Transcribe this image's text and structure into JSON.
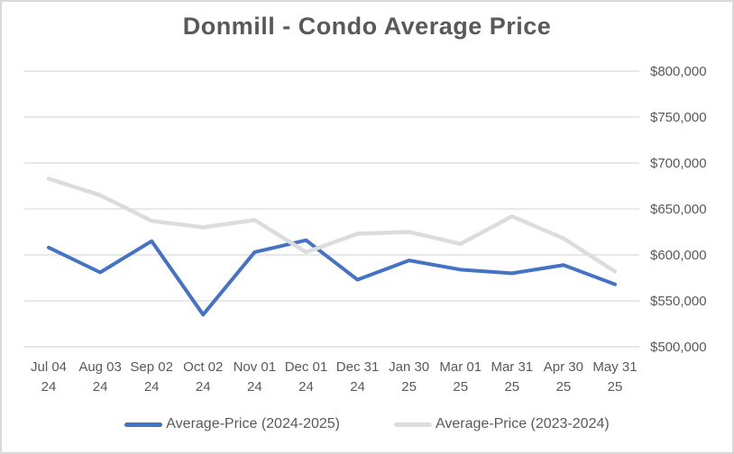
{
  "chart_data": {
    "type": "line",
    "title": "Donmill - Condo Average Price",
    "categories": [
      [
        "Jul 04",
        "24"
      ],
      [
        "Aug 03",
        "24"
      ],
      [
        "Sep 02",
        "24"
      ],
      [
        "Oct 02",
        "24"
      ],
      [
        "Nov 01",
        "24"
      ],
      [
        "Dec 01",
        "24"
      ],
      [
        "Dec 31",
        "24"
      ],
      [
        "Jan 30",
        "25"
      ],
      [
        "Mar 01",
        "25"
      ],
      [
        "Mar 31",
        "25"
      ],
      [
        "Apr 30",
        "25"
      ],
      [
        "May 31",
        "25"
      ]
    ],
    "series": [
      {
        "name": "Average-Price (2024-2025)",
        "color": "#4472c4",
        "values": [
          608000,
          581000,
          615000,
          535000,
          603000,
          616000,
          573000,
          594000,
          584000,
          580000,
          589000,
          568000
        ]
      },
      {
        "name": "Average-Price (2023-2024)",
        "color": "#dcdcdc",
        "values": [
          683000,
          665000,
          637000,
          630000,
          638000,
          603000,
          623000,
          625000,
          612000,
          642000,
          618000,
          582000
        ]
      }
    ],
    "y_axis": {
      "min": 500000,
      "max": 800000,
      "step": 50000,
      "side": "right",
      "tick_labels": [
        "$500,000",
        "$550,000",
        "$600,000",
        "$650,000",
        "$700,000",
        "$750,000",
        "$800,000"
      ]
    },
    "grid": true,
    "gridline_color": "#d9d9d9",
    "text_color": "#595959",
    "legend_position": "bottom",
    "canvas_border_color": "#d9d9d9",
    "background_color": "#ffffff"
  }
}
